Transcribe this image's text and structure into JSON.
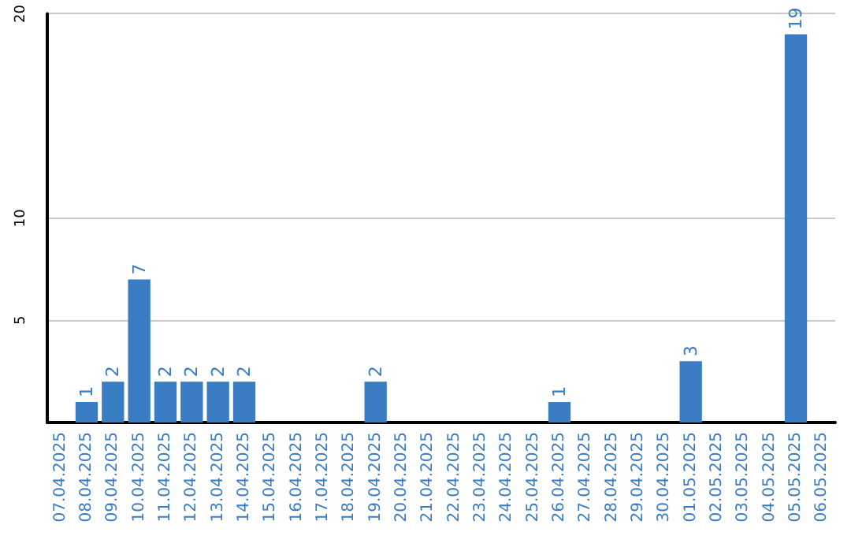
{
  "chart_data": {
    "type": "bar",
    "categories": [
      "07.04.2025",
      "08.04.2025",
      "09.04.2025",
      "10.04.2025",
      "11.04.2025",
      "12.04.2025",
      "13.04.2025",
      "14.04.2025",
      "15.04.2025",
      "16.04.2025",
      "17.04.2025",
      "18.04.2025",
      "19.04.2025",
      "20.04.2025",
      "21.04.2025",
      "22.04.2025",
      "23.04.2025",
      "24.04.2025",
      "25.04.2025",
      "26.04.2025",
      "27.04.2025",
      "28.04.2025",
      "29.04.2025",
      "30.04.2025",
      "01.05.2025",
      "02.05.2025",
      "03.05.2025",
      "04.05.2025",
      "05.05.2025",
      "06.05.2025"
    ],
    "values": [
      0,
      1,
      2,
      7,
      2,
      2,
      2,
      2,
      0,
      0,
      0,
      0,
      2,
      0,
      0,
      0,
      0,
      0,
      0,
      1,
      0,
      0,
      0,
      0,
      3,
      0,
      0,
      0,
      19,
      0
    ],
    "value_labels": [
      null,
      "1",
      "2",
      "7",
      "2",
      "2",
      "2",
      "2",
      null,
      null,
      null,
      null,
      "2",
      null,
      null,
      null,
      null,
      null,
      null,
      "1",
      null,
      null,
      null,
      null,
      "3",
      null,
      null,
      null,
      "19",
      null
    ],
    "color": "#3b7dc4",
    "ylim": [
      0,
      20
    ],
    "yticks": [
      5,
      10,
      20
    ],
    "grid": "y"
  }
}
